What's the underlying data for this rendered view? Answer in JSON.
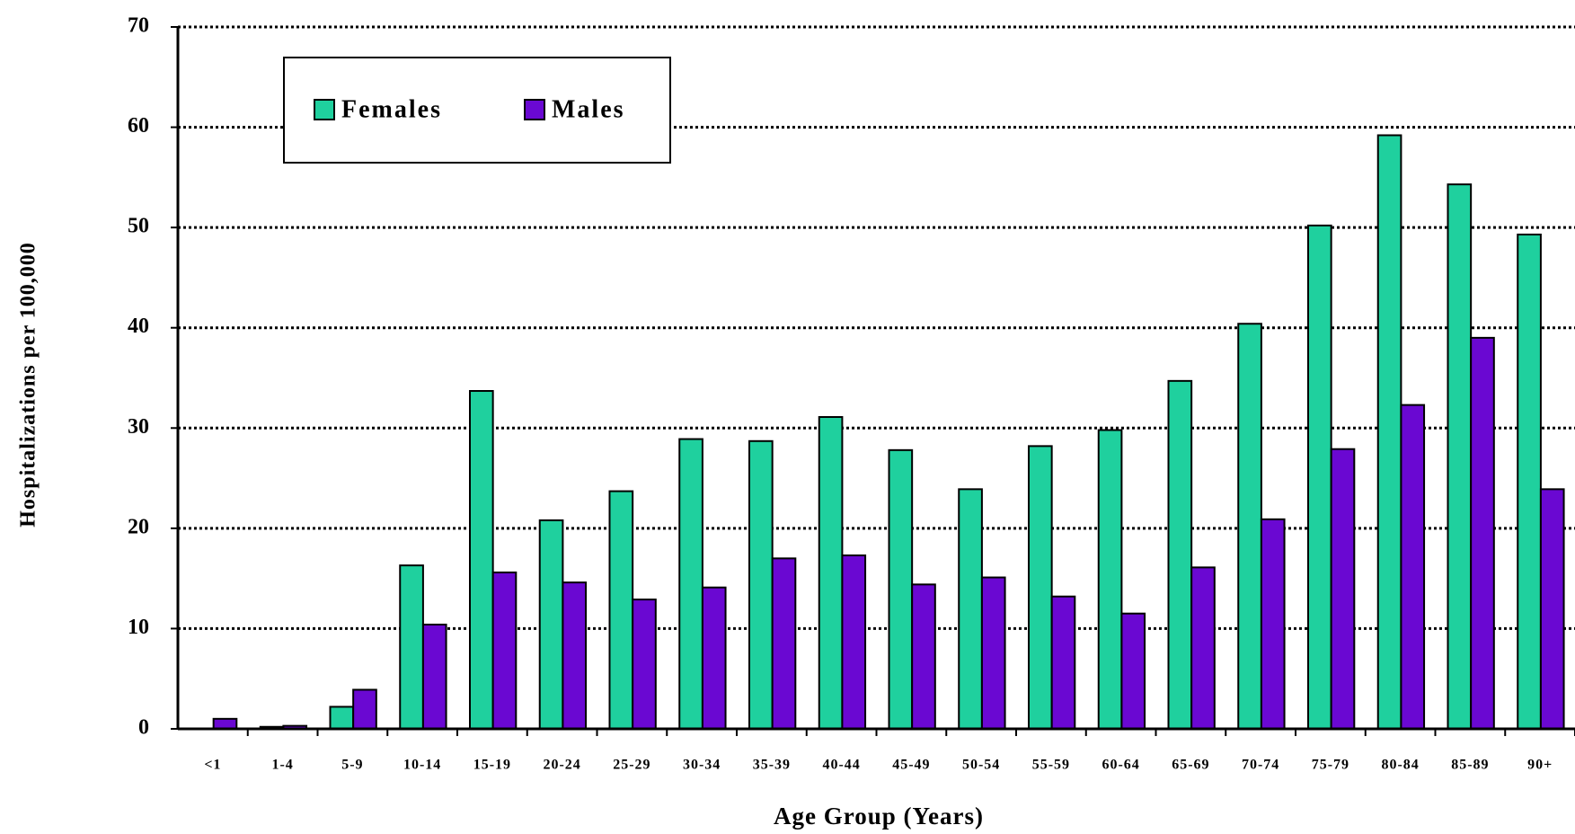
{
  "chart_data": {
    "type": "bar",
    "x_label": "Age Group (Years)",
    "y_label": "Hospitalizations per 100,000",
    "categories": [
      "<1",
      "1-4",
      "5-9",
      "10-14",
      "15-19",
      "20-24",
      "25-29",
      "30-34",
      "35-39",
      "40-44",
      "45-49",
      "50-54",
      "55-59",
      "60-64",
      "65-69",
      "70-74",
      "75-79",
      "80-84",
      "85-89",
      "90+"
    ],
    "series": [
      {
        "name": "Females",
        "color": "#1fd09e",
        "values": [
          0,
          0.2,
          2.2,
          16.3,
          33.7,
          20.8,
          23.7,
          28.9,
          28.7,
          31.1,
          27.8,
          23.9,
          28.2,
          29.8,
          34.7,
          40.4,
          50.2,
          59.2,
          54.3,
          49.3
        ]
      },
      {
        "name": "Males",
        "color": "#6a08d2",
        "values": [
          1.0,
          0.3,
          3.9,
          10.4,
          15.6,
          14.6,
          12.9,
          14.1,
          17.0,
          17.3,
          14.4,
          15.1,
          13.2,
          11.5,
          16.1,
          20.9,
          27.9,
          32.3,
          39.0,
          23.9
        ]
      }
    ],
    "ylim": [
      0,
      70
    ],
    "yticks": [
      0,
      10,
      20,
      30,
      40,
      50,
      60,
      70
    ],
    "grid": true,
    "legend": "upper left"
  }
}
